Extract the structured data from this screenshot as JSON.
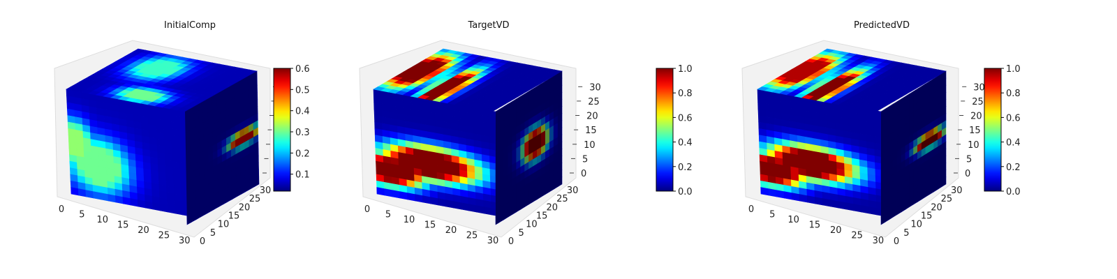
{
  "colormap": "jet",
  "chart_data": [
    {
      "type": "heatmap",
      "subtype": "3d-voxel-cube",
      "title": "InitialComp",
      "x_ticks": [
        "0",
        "5",
        "10",
        "15",
        "20",
        "25",
        "30"
      ],
      "y_ticks": [
        "0",
        "5",
        "10",
        "15",
        "20",
        "25",
        "30"
      ],
      "z_ticks": [],
      "xlim": [
        0,
        32
      ],
      "ylim": [
        0,
        32
      ],
      "zlim": [
        0,
        32
      ],
      "colorbar": {
        "range": [
          0.02,
          0.6
        ],
        "ticks": [
          "0.1",
          "0.2",
          "0.3",
          "0.4",
          "0.5",
          "0.6"
        ],
        "tick_values": [
          0.1,
          0.2,
          0.3,
          0.4,
          0.5,
          0.6
        ]
      },
      "background_value": 0.05,
      "faces": {
        "front": [
          {
            "u": 0.25,
            "v": 0.68,
            "ru": 0.36,
            "rv": 0.36,
            "value": 0.3
          },
          {
            "u": 0.05,
            "v": 0.5,
            "ru": 0.22,
            "rv": 0.3,
            "value": 0.32
          }
        ],
        "top": [
          {
            "u": 0.35,
            "v": 0.3,
            "ru": 0.28,
            "rv": 0.35,
            "value": 0.27
          },
          {
            "u": 0.55,
            "v": 0.85,
            "ru": 0.28,
            "rv": 0.2,
            "value": 0.3
          }
        ],
        "side": [
          {
            "u": 0.8,
            "v": 0.52,
            "ru": 0.28,
            "rv": 0.09,
            "value": 0.55
          }
        ]
      }
    },
    {
      "type": "heatmap",
      "subtype": "3d-voxel-cube",
      "title": "TargetVD",
      "x_ticks": [
        "0",
        "5",
        "10",
        "15",
        "20",
        "25",
        "30"
      ],
      "y_ticks": [
        "0",
        "5",
        "10",
        "15",
        "20",
        "25",
        "30"
      ],
      "z_ticks": [
        "0",
        "5",
        "10",
        "15",
        "20",
        "25",
        "30"
      ],
      "xlim": [
        0,
        32
      ],
      "ylim": [
        0,
        32
      ],
      "zlim": [
        0,
        32
      ],
      "colorbar": {
        "range": [
          0.0,
          1.0
        ],
        "ticks": [
          "0.0",
          "0.2",
          "0.4",
          "0.6",
          "0.8",
          "1.0"
        ],
        "tick_values": [
          0,
          0.2,
          0.4,
          0.6,
          0.8,
          1.0
        ]
      },
      "background_value": 0.03,
      "faces": {
        "front": [
          {
            "u": 0.12,
            "v": 0.75,
            "ru": 0.4,
            "rv": 0.2,
            "value": 1.0
          },
          {
            "u": 0.45,
            "v": 0.62,
            "ru": 0.55,
            "rv": 0.22,
            "value": 1.0
          }
        ],
        "top": [
          {
            "u": 0.1,
            "v": 0.5,
            "ru": 0.22,
            "rv": 0.55,
            "value": 1.0
          },
          {
            "u": 0.45,
            "v": 0.72,
            "ru": 0.14,
            "rv": 0.6,
            "value": 1.0
          }
        ],
        "side": [
          {
            "u": 0.6,
            "v": 0.5,
            "ru": 0.26,
            "rv": 0.18,
            "value": 1.0
          }
        ]
      }
    },
    {
      "type": "heatmap",
      "subtype": "3d-voxel-cube",
      "title": "PredictedVD",
      "x_ticks": [
        "0",
        "5",
        "10",
        "15",
        "20",
        "25",
        "30"
      ],
      "y_ticks": [
        "0",
        "5",
        "10",
        "15",
        "20",
        "25",
        "30"
      ],
      "z_ticks": [
        "0",
        "5",
        "10",
        "15",
        "20",
        "25",
        "30"
      ],
      "xlim": [
        0,
        32
      ],
      "ylim": [
        0,
        32
      ],
      "zlim": [
        0,
        32
      ],
      "colorbar": {
        "range": [
          0.0,
          1.0
        ],
        "ticks": [
          "0.0",
          "0.2",
          "0.4",
          "0.6",
          "0.8",
          "1.0"
        ],
        "tick_values": [
          0,
          0.2,
          0.4,
          0.6,
          0.8,
          1.0
        ]
      },
      "background_value": 0.03,
      "faces": {
        "front": [
          {
            "u": 0.1,
            "v": 0.75,
            "ru": 0.38,
            "rv": 0.2,
            "value": 1.0
          },
          {
            "u": 0.42,
            "v": 0.62,
            "ru": 0.5,
            "rv": 0.22,
            "value": 1.0
          }
        ],
        "top": [
          {
            "u": 0.1,
            "v": 0.5,
            "ru": 0.22,
            "rv": 0.55,
            "value": 0.95
          },
          {
            "u": 0.45,
            "v": 0.72,
            "ru": 0.14,
            "rv": 0.6,
            "value": 1.0
          }
        ],
        "side": [
          {
            "u": 0.75,
            "v": 0.52,
            "ru": 0.3,
            "rv": 0.09,
            "value": 1.0
          }
        ]
      }
    }
  ]
}
